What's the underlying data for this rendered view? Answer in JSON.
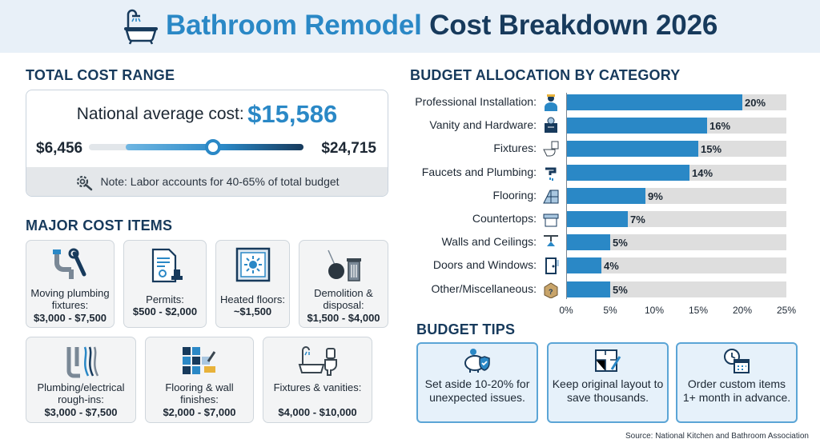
{
  "header": {
    "title_part1": "Bathroom Remodel",
    "title_part2": "Cost Breakdown 2026",
    "icon": "bathtub-shower-icon"
  },
  "total_cost_range": {
    "heading": "TOTAL COST RANGE",
    "average_label": "National average cost:",
    "average_value": "$15,586",
    "low": "$6,456",
    "high": "$24,715",
    "note": "Note: Labor accounts for 40-65% of total budget",
    "note_icon": "gear-wrench-icon"
  },
  "major_cost_items": {
    "heading": "MAJOR COST ITEMS",
    "items": [
      {
        "label": "Moving plumbing fixtures:",
        "value": "$3,000 - $7,500",
        "icon": "pipe-wrench-icon"
      },
      {
        "label": "Permits:",
        "value": "$500 - $2,000",
        "icon": "permit-document-stamp-icon"
      },
      {
        "label": "Heated floors:",
        "value": "~$1,500",
        "icon": "heated-floor-icon"
      },
      {
        "label": "Demolition & disposal:",
        "value": "$1,500 - $4,000",
        "icon": "wrecking-ball-trash-icon"
      },
      {
        "label": "Plumbing/electrical rough-ins:",
        "value": "$3,000 - $7,500",
        "icon": "pipes-wires-icon"
      },
      {
        "label": "Flooring & wall finishes:",
        "value": "$2,000 - $7,000",
        "icon": "tiles-brush-icon"
      },
      {
        "label": "Fixtures & vanities:",
        "value": "$4,000 - $10,000",
        "icon": "tub-toilet-icon"
      }
    ]
  },
  "budget_allocation": {
    "heading": "BUDGET ALLOCATION BY CATEGORY"
  },
  "chart_data": {
    "type": "bar",
    "orientation": "horizontal",
    "categories": [
      "Professional Installation:",
      "Vanity and Hardware:",
      "Fixtures:",
      "Faucets and Plumbing:",
      "Flooring:",
      "Countertops:",
      "Walls and Ceilings:",
      "Doors and Windows:",
      "Other/Miscellaneous:"
    ],
    "values": [
      20,
      16,
      15,
      14,
      9,
      7,
      5,
      4,
      5
    ],
    "value_labels": [
      "20%",
      "16%",
      "15%",
      "14%",
      "9%",
      "7%",
      "5%",
      "4%",
      "5%"
    ],
    "category_icons": [
      "worker-icon",
      "vanity-icon",
      "toilet-icon",
      "faucet-icon",
      "floor-tiles-icon",
      "countertop-icon",
      "light-fixture-icon",
      "door-icon",
      "box-question-icon"
    ],
    "xlim": [
      0,
      25
    ],
    "xticks": [
      "0%",
      "5%",
      "10%",
      "15%",
      "20%",
      "25%"
    ],
    "xtick_values": [
      0,
      5,
      10,
      15,
      20,
      25
    ],
    "bar_color": "#2a88c6",
    "track_color": "#dedede",
    "grid": false
  },
  "budget_tips": {
    "heading": "BUDGET TIPS",
    "tips": [
      {
        "text": "Set aside 10-20% for unexpected issues.",
        "icon": "piggy-bank-shield-icon"
      },
      {
        "text": "Keep original layout to save thousands.",
        "icon": "floor-plan-pencil-icon"
      },
      {
        "text": "Order custom items 1+ month in advance.",
        "icon": "clock-calendar-icon"
      }
    ]
  },
  "source": "Source: National Kitchen and Bathroom Association",
  "colors": {
    "accent_blue": "#2a88c6",
    "dark_navy": "#173a5c",
    "header_bg": "#e8f0f8",
    "tip_bg": "#e6f1fa"
  }
}
